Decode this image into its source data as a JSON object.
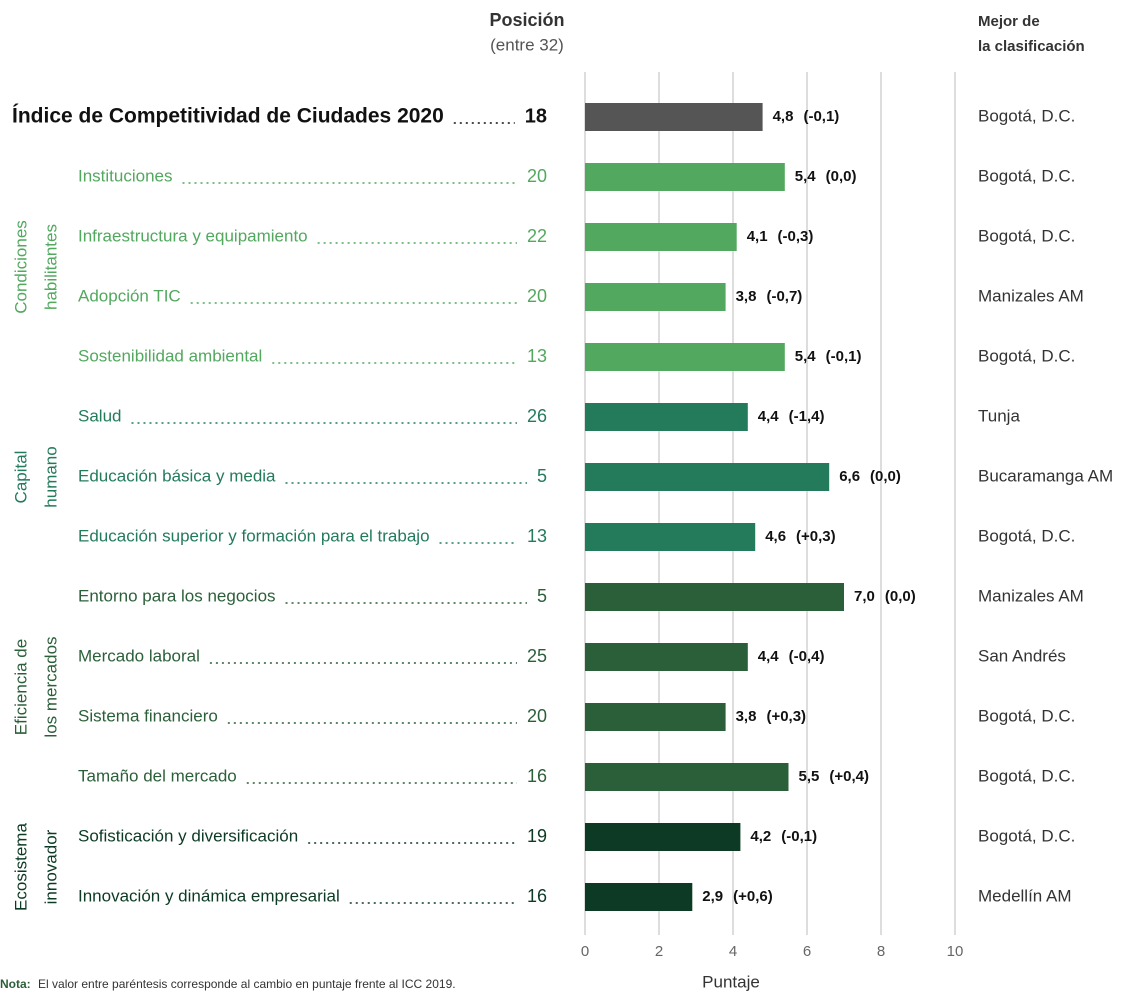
{
  "chart_data": {
    "type": "bar",
    "orientation": "horizontal",
    "position_header": "Posición",
    "position_subheader": "(entre 32)",
    "best_header": [
      "Mejor de",
      "la clasificación"
    ],
    "categories": [
      "Índice de Competitividad de Ciudades 2020",
      "Instituciones",
      "Infraestructura y equipamiento",
      "Adopción TIC",
      "Sostenibilidad ambiental",
      "Salud",
      "Educación básica y media",
      "Educación superior y formación para el trabajo",
      "Entorno para los negocios",
      "Mercado laboral",
      "Sistema financiero",
      "Tamaño del mercado",
      "Sofisticación y diversificación",
      "Innovación y dinámica empresarial"
    ],
    "positions": [
      18,
      20,
      22,
      20,
      13,
      26,
      5,
      13,
      5,
      25,
      20,
      16,
      19,
      16
    ],
    "values": [
      4.8,
      5.4,
      4.1,
      3.8,
      5.4,
      4.4,
      6.6,
      4.6,
      7.0,
      4.4,
      3.8,
      5.5,
      4.2,
      2.9
    ],
    "value_labels": [
      "4,8",
      "5,4",
      "4,1",
      "3,8",
      "5,4",
      "4,4",
      "6,6",
      "4,6",
      "7,0",
      "4,4",
      "3,8",
      "5,5",
      "4,2",
      "2,9"
    ],
    "changes": [
      "(-0,1)",
      "(0,0)",
      "(-0,3)",
      "(-0,7)",
      "(-0,1)",
      "(-1,4)",
      "(0,0)",
      "(+0,3)",
      "(0,0)",
      "(-0,4)",
      "(+0,3)",
      "(+0,4)",
      "(-0,1)",
      "(+0,6)"
    ],
    "best": [
      "Bogotá, D.C.",
      "Bogotá, D.C.",
      "Bogotá, D.C.",
      "Manizales AM",
      "Bogotá, D.C.",
      "Tunja",
      "Bucaramanga AM",
      "Bogotá, D.C.",
      "Manizales AM",
      "San Andrés",
      "Bogotá, D.C.",
      "Bogotá, D.C.",
      "Bogotá, D.C.",
      "Medellín AM"
    ],
    "colors": [
      "#555555",
      "#52a85e",
      "#52a85e",
      "#52a85e",
      "#52a85e",
      "#237b5b",
      "#237b5b",
      "#237b5b",
      "#2b5f39",
      "#2b5f39",
      "#2b5f39",
      "#2b5f39",
      "#0c3a24",
      "#0c3a24"
    ],
    "groups": [
      {
        "label": [
          "Condiciones",
          "habilitantes"
        ],
        "color": "#52a85e"
      },
      {
        "label": [
          "Capital",
          "humano"
        ],
        "color": "#237b5b"
      },
      {
        "label": [
          "Eficiencia de",
          "los mercados"
        ],
        "color": "#2b5f39"
      },
      {
        "label": [
          "Ecosistema",
          "innovador"
        ],
        "color": "#0c3a24"
      }
    ],
    "xlabel": "Puntaje",
    "xlim": [
      0,
      10
    ],
    "xticks": [
      0,
      2,
      4,
      6,
      8,
      10
    ],
    "grid": true,
    "note_label": "Nota:",
    "note": "El valor entre paréntesis corresponde al cambio en puntaje frente al ICC 2019."
  }
}
